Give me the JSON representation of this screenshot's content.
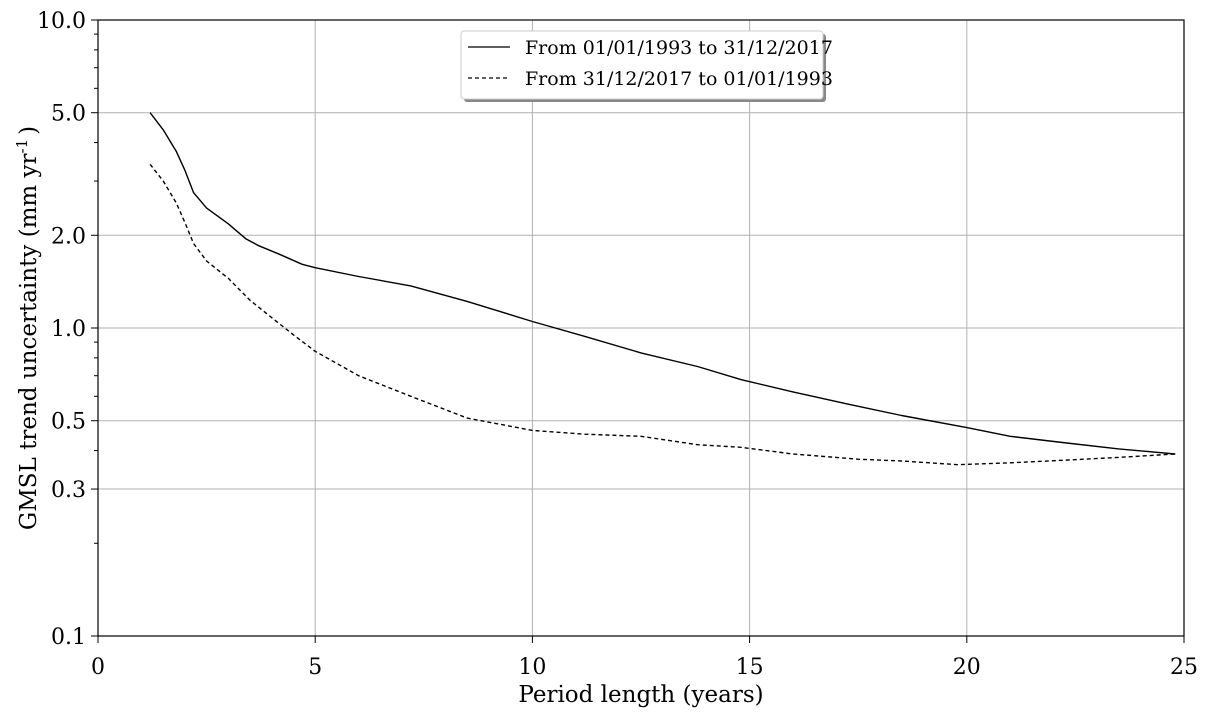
{
  "chart_data": {
    "type": "line",
    "xlabel": "Period length (years)",
    "ylabel": "GMSL trend uncertainty (mm yr",
    "ylabel_sup": "-1",
    "ylabel_close": ")",
    "xlim": [
      0,
      25
    ],
    "ylim": [
      0.1,
      10.0
    ],
    "y_scale": "log",
    "grid": true,
    "legend_position": "top-center",
    "x_ticks": [
      0,
      5,
      10,
      15,
      20,
      25
    ],
    "x_tick_labels": [
      "0",
      "5",
      "10",
      "15",
      "20",
      "25"
    ],
    "y_ticks": [
      0.1,
      0.3,
      0.5,
      1.0,
      2.0,
      5.0,
      10.0
    ],
    "y_tick_labels": [
      "0.1",
      "0.3",
      "0.5",
      "1.0",
      "2.0",
      "5.0",
      "10.0"
    ],
    "series": [
      {
        "name": "From 01/01/1993 to 31/12/2017",
        "style": "solid",
        "color": "#000000",
        "x": [
          1.2,
          1.5,
          1.8,
          2.0,
          2.2,
          2.5,
          3.0,
          3.4,
          3.7,
          4.2,
          4.7,
          5.0,
          6.0,
          7.2,
          8.5,
          10.0,
          11.2,
          12.5,
          13.8,
          14.8,
          16.0,
          17.3,
          18.5,
          20.0,
          21.0,
          22.2,
          23.5,
          24.8
        ],
        "values": [
          5.0,
          4.4,
          3.75,
          3.25,
          2.75,
          2.45,
          2.18,
          1.95,
          1.85,
          1.73,
          1.61,
          1.57,
          1.47,
          1.37,
          1.22,
          1.05,
          0.94,
          0.83,
          0.75,
          0.68,
          0.62,
          0.565,
          0.52,
          0.475,
          0.445,
          0.425,
          0.405,
          0.39
        ]
      },
      {
        "name": "From 31/12/2017 to 01/01/1993",
        "style": "dashed",
        "color": "#000000",
        "x": [
          1.2,
          1.5,
          1.8,
          2.0,
          2.2,
          2.5,
          3.0,
          3.5,
          4.0,
          4.5,
          5.0,
          6.0,
          7.2,
          8.5,
          10.0,
          11.2,
          12.5,
          13.8,
          14.8,
          16.0,
          17.5,
          18.5,
          19.8,
          21.0,
          22.2,
          23.5,
          24.8
        ],
        "values": [
          3.4,
          3.0,
          2.55,
          2.2,
          1.88,
          1.65,
          1.45,
          1.23,
          1.08,
          0.95,
          0.84,
          0.7,
          0.6,
          0.51,
          0.465,
          0.452,
          0.445,
          0.418,
          0.41,
          0.39,
          0.375,
          0.37,
          0.36,
          0.365,
          0.372,
          0.38,
          0.39
        ]
      }
    ]
  }
}
